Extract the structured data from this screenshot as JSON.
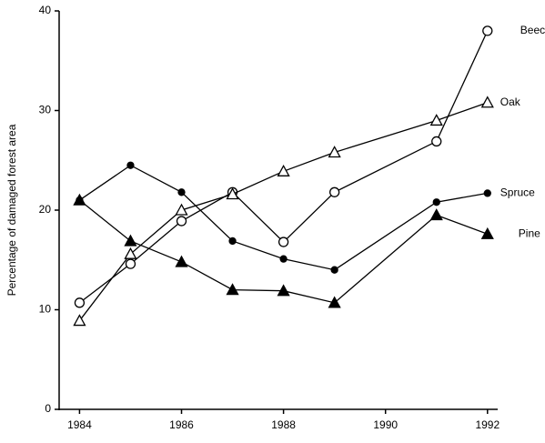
{
  "chart_data": {
    "type": "line",
    "y_label": "Percentage of damaged forest area",
    "x": [
      1984,
      1985,
      1986,
      1987,
      1988,
      1989,
      1991,
      1992
    ],
    "series": [
      {
        "name": "Beech",
        "color": "#000000",
        "marker": "circle-open",
        "values": [
          10.7,
          14.6,
          18.9,
          21.8,
          16.8,
          21.8,
          26.9,
          38
        ]
      },
      {
        "name": "Oak",
        "color": "#000000",
        "marker": "triangle-open",
        "values": [
          8.9,
          15.6,
          20,
          21.6,
          23.9,
          25.8,
          29,
          30.8
        ]
      },
      {
        "name": "Spruce",
        "color": "#000000",
        "marker": "dot",
        "values": [
          21,
          24.5,
          21.8,
          16.9,
          15.1,
          14,
          20.8,
          21.7
        ]
      },
      {
        "name": "Pine",
        "color": "#000000",
        "marker": "triangle-filled",
        "values": [
          21,
          16.9,
          14.8,
          12,
          11.9,
          10.7,
          19.5,
          17.6
        ]
      }
    ],
    "xlim": [
      1983.6,
      1992.2
    ],
    "xticks": [
      1984,
      1986,
      1988,
      1990,
      1992
    ],
    "ylim": [
      0,
      40
    ],
    "yticks": [
      0,
      10,
      20,
      30,
      40
    ],
    "grid": false
  }
}
